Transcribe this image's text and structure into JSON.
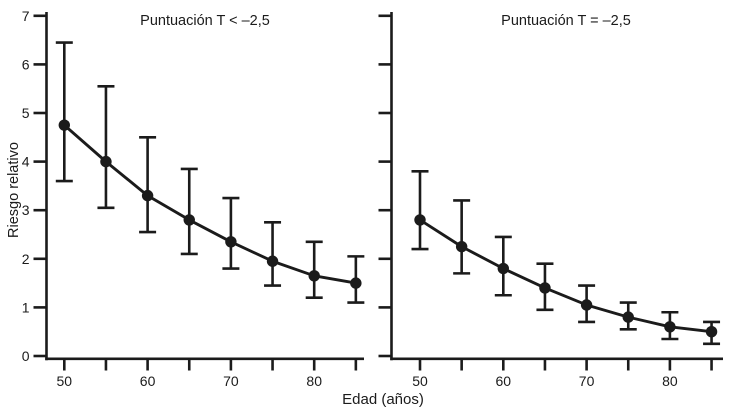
{
  "chart_data": {
    "type": "line",
    "title": "",
    "xlabel": "Edad (años)",
    "ylabel": "Riesgo relativo",
    "ylim": [
      0,
      7
    ],
    "xlim": [
      48,
      86
    ],
    "y_ticks": [
      0,
      1,
      2,
      3,
      4,
      5,
      6,
      7
    ],
    "x_ticks": [
      50,
      55,
      60,
      65,
      70,
      75,
      80,
      85
    ],
    "x_tick_labels": [
      "50",
      "",
      "60",
      "",
      "70",
      "",
      "80",
      ""
    ],
    "grid": "off",
    "legend": "none",
    "marker": "filled-circle",
    "error_bars": "95%-CI vertical with caps",
    "line_color": "#1b1b1b",
    "background_color": "#ffffff",
    "panels": [
      {
        "title": "Puntuación T < –2,5",
        "y_tick_labels_visible": true,
        "x": [
          50,
          55,
          60,
          65,
          70,
          75,
          80,
          85
        ],
        "y": [
          4.75,
          4.0,
          3.3,
          2.8,
          2.35,
          1.95,
          1.65,
          1.5
        ],
        "ci_low": [
          3.6,
          3.05,
          2.55,
          2.1,
          1.8,
          1.45,
          1.2,
          1.1
        ],
        "ci_high": [
          6.45,
          5.55,
          4.5,
          3.85,
          3.25,
          2.75,
          2.35,
          2.05
        ]
      },
      {
        "title": "Puntuación T = –2,5",
        "y_tick_labels_visible": false,
        "x": [
          50,
          55,
          60,
          65,
          70,
          75,
          80,
          85
        ],
        "y": [
          2.8,
          2.25,
          1.8,
          1.4,
          1.05,
          0.8,
          0.6,
          0.5
        ],
        "ci_low": [
          2.2,
          1.7,
          1.25,
          0.95,
          0.7,
          0.55,
          0.35,
          0.25
        ],
        "ci_high": [
          3.8,
          3.2,
          2.45,
          1.9,
          1.45,
          1.1,
          0.9,
          0.7
        ]
      }
    ]
  }
}
